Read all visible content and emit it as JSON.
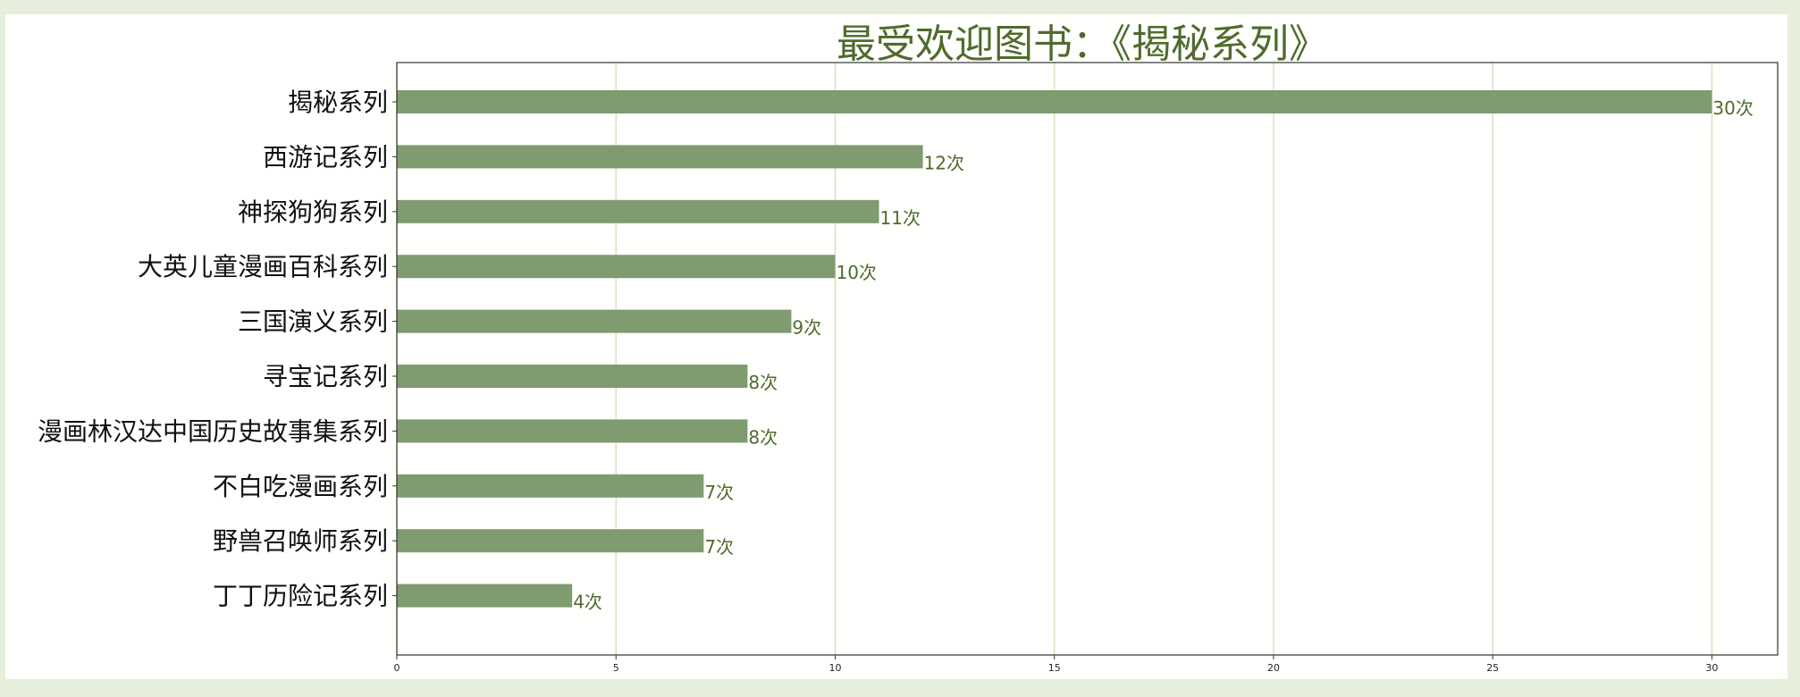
{
  "chart_data": {
    "type": "bar",
    "orientation": "horizontal",
    "title": "最受欢迎图书：《揭秘系列》",
    "xlabel": "",
    "ylabel": "",
    "categories": [
      "揭秘系列",
      "西游记系列",
      "神探狗狗系列",
      "大英儿童漫画百科系列",
      "三国演义系列",
      "寻宝记系列",
      "漫画林汉达中国历史故事集系列",
      "不白吃漫画系列",
      "野兽召唤师系列",
      "丁丁历险记系列"
    ],
    "values": [
      30,
      12,
      11,
      10,
      9,
      8,
      8,
      7,
      7,
      4
    ],
    "data_labels": [
      "30次",
      "12次",
      "11次",
      "10次",
      "9次",
      "8次",
      "8次",
      "7次",
      "7次",
      "4次"
    ],
    "xlim": [
      0,
      31.5
    ],
    "xticks": [
      0,
      5,
      10,
      15,
      20,
      25,
      30
    ],
    "grid": "vertical",
    "colors": {
      "bar": "#7f9b6f",
      "grid": "#d5e3c2",
      "title": "#4e6b2c",
      "label": "#4e6b2c"
    }
  }
}
